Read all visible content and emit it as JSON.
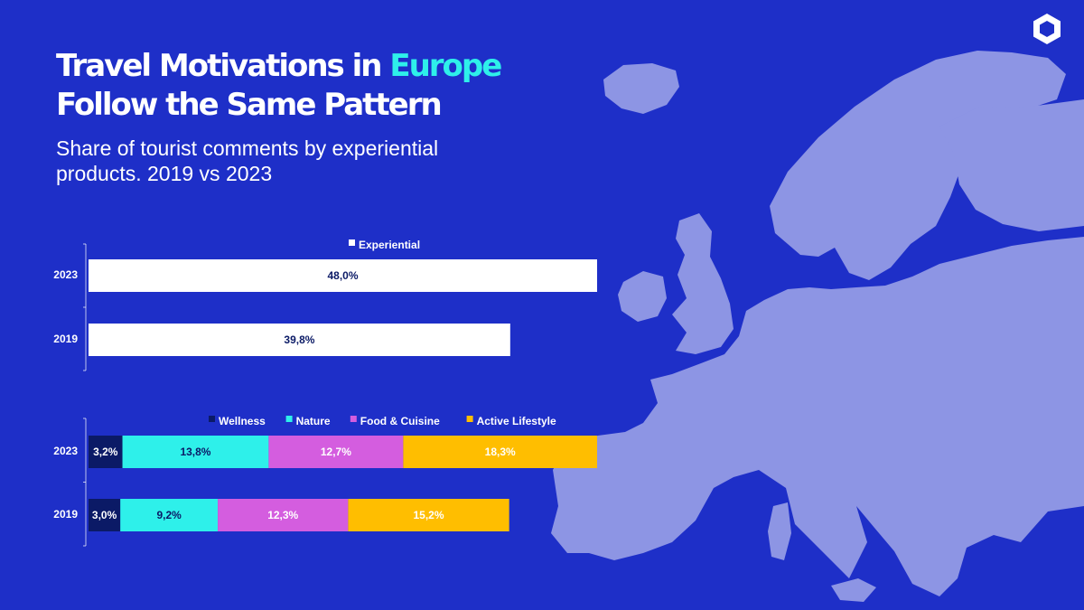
{
  "title": {
    "line1_prefix": "Travel Motivations in",
    "line1_highlight": "Europe",
    "line2": "Follow the Same Pattern"
  },
  "subtitle": "Share of tourist comments by experiential products. 2019 vs 2023",
  "colors": {
    "background": "#1e2fc8",
    "highlight": "#2ef0ea",
    "map": "#8d95e4",
    "experiential": "#ffffff",
    "wellness": "#0b1a66",
    "nature": "#2ef0ea",
    "food_cuisine": "#d45ddf",
    "active_lifestyle": "#ffbe00"
  },
  "logo_icon": "hexagon-logo-icon",
  "chart_data": [
    {
      "type": "bar",
      "orientation": "horizontal",
      "categories": [
        "2023",
        "2019"
      ],
      "series": [
        {
          "name": "Experiential",
          "values": [
            48.0,
            39.8
          ],
          "labels": [
            "48,0%",
            "39,8%"
          ],
          "color": "#ffffff"
        }
      ],
      "xlim": [
        0,
        48.0
      ],
      "legend_position": "top",
      "grid": false
    },
    {
      "type": "bar",
      "orientation": "horizontal",
      "stacked": true,
      "categories": [
        "2023",
        "2019"
      ],
      "series": [
        {
          "name": "Wellness",
          "values": [
            3.2,
            3.0
          ],
          "labels": [
            "3,2%",
            "3,0%"
          ],
          "color": "#0b1a66",
          "label_color": "#ffffff"
        },
        {
          "name": "Nature",
          "values": [
            13.8,
            9.2
          ],
          "labels": [
            "13,8%",
            "9,2%"
          ],
          "color": "#2ef0ea",
          "label_color": "#0b1a66"
        },
        {
          "name": "Food & Cuisine",
          "values": [
            12.7,
            12.3
          ],
          "labels": [
            "12,7%",
            "12,3%"
          ],
          "color": "#d45ddf",
          "label_color": "#ffffff"
        },
        {
          "name": "Active Lifestyle",
          "values": [
            18.3,
            15.2
          ],
          "labels": [
            "18,3%",
            "15,2%"
          ],
          "color": "#ffbe00",
          "label_color": "#ffffff"
        }
      ],
      "xlim": [
        0,
        48.0
      ],
      "legend_position": "top",
      "grid": false
    }
  ]
}
